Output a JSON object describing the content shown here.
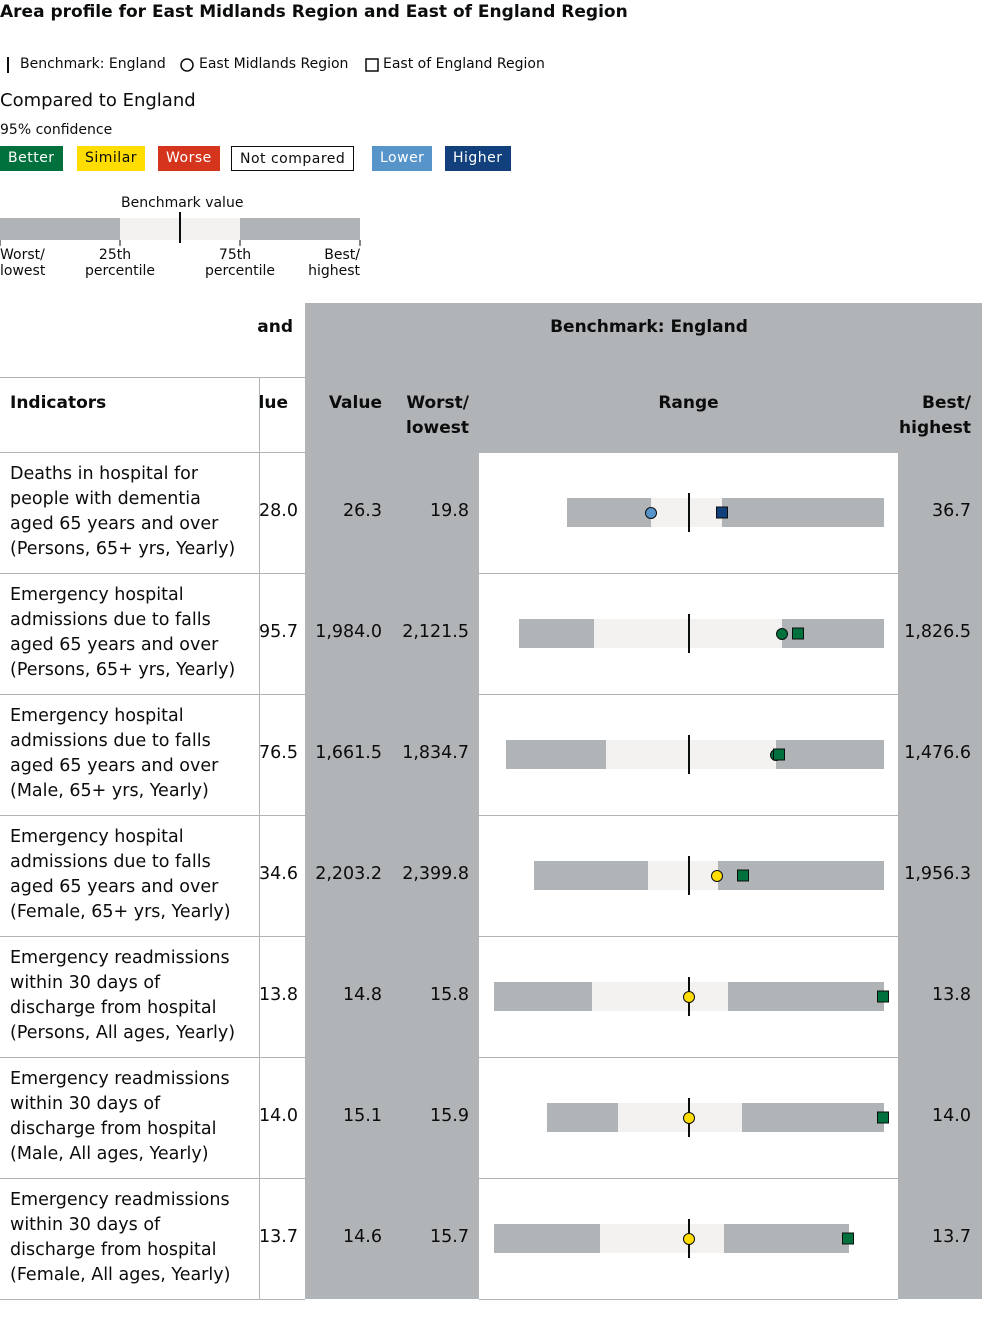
{
  "title": "Area profile for East Midlands Region and East of England Region",
  "legend": {
    "benchmark": "Benchmark: England",
    "region1": "East Midlands Region",
    "region2": "East of England Region"
  },
  "comparison": {
    "heading": "Compared to England",
    "confidence": "95% confidence",
    "badges": [
      "Better",
      "Similar",
      "Worse",
      "Not compared",
      "Lower",
      "Higher"
    ]
  },
  "key": {
    "benchmark_value": "Benchmark value",
    "labels": [
      "Worst/ lowest",
      "25th percentile",
      "75th percentile",
      "Best/ highest"
    ]
  },
  "table": {
    "group_header_left": "and",
    "group_header_right": "Benchmark: England",
    "columns": [
      "Indicators",
      "lue",
      "Value",
      "Worst/ lowest",
      "Range",
      "Best/ highest"
    ],
    "rows": [
      [
        "Deaths in hospital for people with dementia aged 65 years and over (Persons, 65+ yrs, Yearly)",
        "28.0",
        "26.3",
        "19.8",
        "36.7"
      ],
      [
        "Emergency hospital admissions due to falls aged 65 years and over (Persons, 65+ yrs, Yearly)",
        "95.7",
        "1,984.0",
        "2,121.5",
        "1,826.5"
      ],
      [
        "Emergency hospital admissions due to falls aged 65 years and over (Male, 65+ yrs, Yearly)",
        "76.5",
        "1,661.5",
        "1,834.7",
        "1,476.6"
      ],
      [
        "Emergency hospital admissions due to falls aged 65 years and over (Female, 65+ yrs, Yearly)",
        "34.6",
        "2,203.2",
        "2,399.8",
        "1,956.3"
      ],
      [
        "Emergency readmissions within 30 days of discharge from hospital (Persons, All ages, Yearly)",
        "13.8",
        "14.8",
        "15.8",
        "13.8"
      ],
      [
        "Emergency readmissions within 30 days of discharge from hospital (Male, All ages, Yearly)",
        "14.0",
        "15.1",
        "15.9",
        "14.0"
      ],
      [
        "Emergency readmissions within 30 days of discharge from hospital (Female, All ages, Yearly)",
        "13.7",
        "14.6",
        "15.7",
        "13.7"
      ]
    ]
  }
}
